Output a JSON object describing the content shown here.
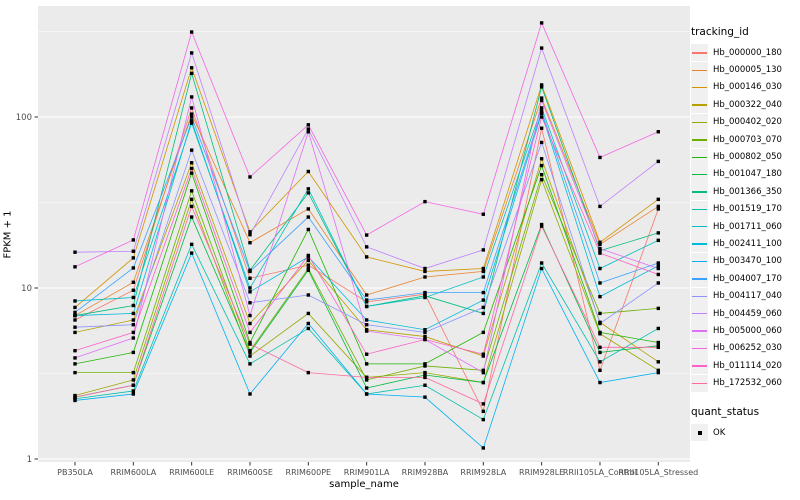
{
  "chart_data": {
    "type": "line",
    "xlabel": "sample_name",
    "ylabel": "FPKM + 1",
    "y_scale": "log10",
    "ylim": [
      1,
      450
    ],
    "y_ticks": [
      1,
      10,
      100
    ],
    "y_tick_labels": [
      "1",
      "10",
      "100"
    ],
    "y_minor_ticks": [
      3.1623,
      31.623,
      316.23
    ],
    "grid": "on",
    "legend_position": "right",
    "categories": [
      "PB350LA",
      "RRIM600LA",
      "RRIM600LE",
      "RRIM600SE",
      "RRIM600PE",
      "RRIM901LA",
      "RRIM928BA",
      "RRIM928LA",
      "RRIM928LE",
      "RRII105LA_Control",
      "RRII105LA_Stressed"
    ],
    "series": [
      {
        "name": "Hb_000000_180",
        "color": "#F8766D",
        "values": [
          6.5,
          9.7,
          113,
          11.4,
          13.6,
          8.3,
          9.2,
          1.9,
          86,
          3.3,
          29
        ]
      },
      {
        "name": "Hb_000005_130",
        "color": "#E8842C",
        "values": [
          6.9,
          10.8,
          104,
          18.4,
          29,
          9.1,
          11.6,
          12.5,
          129,
          18,
          30
        ]
      },
      {
        "name": "Hb_000146_030",
        "color": "#D19300",
        "values": [
          7.7,
          15.0,
          194,
          21.3,
          48,
          15.2,
          12.5,
          13,
          154,
          18.5,
          33
        ]
      },
      {
        "name": "Hb_000322_040",
        "color": "#B79F00",
        "values": [
          5.5,
          6.5,
          54,
          6.2,
          14.5,
          5.7,
          5.2,
          4.0,
          57,
          6.3,
          3.7
        ]
      },
      {
        "name": "Hb_000402_020",
        "color": "#99A800",
        "values": [
          2.35,
          2.9,
          33,
          4.0,
          7.1,
          3.0,
          3.2,
          2.8,
          43,
          5.4,
          3.3
        ]
      },
      {
        "name": "Hb_000703_070",
        "color": "#6DB000",
        "values": [
          3.2,
          3.2,
          37,
          4.3,
          13.0,
          2.9,
          3.5,
          3.3,
          46,
          7.1,
          7.6
        ]
      },
      {
        "name": "Hb_000802_050",
        "color": "#1FB600",
        "values": [
          3.6,
          4.2,
          47,
          4.8,
          22,
          3.6,
          3.6,
          5.5,
          52,
          5.5,
          4.8
        ]
      },
      {
        "name": "Hb_001047_180",
        "color": "#00BA42",
        "values": [
          2.3,
          2.7,
          26,
          4.2,
          12.7,
          2.6,
          3.1,
          2.8,
          23.5,
          4.2,
          4.6
        ]
      },
      {
        "name": "Hb_001366_350",
        "color": "#00BE7C",
        "values": [
          6.9,
          7.9,
          180,
          12.7,
          36,
          7.8,
          9.0,
          7.1,
          150,
          16.5,
          21
        ]
      },
      {
        "name": "Hb_001519_170",
        "color": "#00C0AC",
        "values": [
          2.25,
          2.5,
          18,
          3.6,
          5.8,
          2.4,
          2.7,
          1.7,
          14,
          3.7,
          5.8
        ]
      },
      {
        "name": "Hb_001711_060",
        "color": "#00BFC4",
        "values": [
          8.4,
          8.8,
          92,
          10.0,
          38,
          7.8,
          8.8,
          11.6,
          113,
          13,
          19
        ]
      },
      {
        "name": "Hb_002411_100",
        "color": "#00BBDB",
        "values": [
          6.9,
          7.1,
          95,
          9.5,
          15.2,
          6.5,
          5.7,
          8.5,
          105,
          8.9,
          13.5
        ]
      },
      {
        "name": "Hb_003470_100",
        "color": "#00B1F2",
        "values": [
          2.2,
          2.4,
          16,
          2.4,
          6.2,
          2.4,
          2.3,
          1.16,
          13,
          2.8,
          3.2
        ]
      },
      {
        "name": "Hb_004007_170",
        "color": "#3DA1FF",
        "values": [
          7.2,
          13.1,
          100,
          12.5,
          26,
          8.5,
          9.4,
          9.4,
          108,
          10.7,
          14
        ]
      },
      {
        "name": "Hb_004117_040",
        "color": "#8C93FF",
        "values": [
          5.9,
          6.1,
          64,
          8.2,
          9.1,
          6.1,
          5.5,
          7.7,
          71,
          6.2,
          10.7
        ]
      },
      {
        "name": "Hb_004459_060",
        "color": "#BF80FF",
        "values": [
          16.2,
          16.4,
          237,
          20.5,
          85,
          17.4,
          13,
          16.7,
          253,
          30,
          55
        ]
      },
      {
        "name": "Hb_005000_060",
        "color": "#DF70F8",
        "values": [
          3.9,
          5.1,
          131,
          6.9,
          82,
          5.6,
          5.0,
          3.2,
          125,
          17,
          13
        ]
      },
      {
        "name": "Hb_006252_030",
        "color": "#F564E3",
        "values": [
          13.3,
          19.1,
          314,
          44.6,
          90,
          20.4,
          32,
          27,
          355,
          58,
          82
        ]
      },
      {
        "name": "Hb_011114_020",
        "color": "#FF61C7",
        "values": [
          4.3,
          5.5,
          50,
          5.5,
          15.5,
          4.1,
          5.0,
          4.1,
          100,
          16,
          12
        ]
      },
      {
        "name": "Hb_172532_060",
        "color": "#FF68A1",
        "values": [
          2.3,
          2.7,
          30,
          4.7,
          3.2,
          3.0,
          3.0,
          2.1,
          23,
          4.5,
          4.5
        ]
      }
    ],
    "legend": {
      "color_title": "tracking_id",
      "shape_title": "quant_status",
      "shape_items": [
        {
          "label": "OK",
          "shape": "filled-square",
          "color": "#000000"
        }
      ]
    },
    "point_shape": "filled-square",
    "point_color": "#000000"
  },
  "style_colors": {
    "panel_bg": "#EBEBEB",
    "grid_major": "#FFFFFF",
    "grid_minor": "#F7F7F7",
    "tick_text": "#4D4D4D",
    "tick_mark": "#333333"
  }
}
